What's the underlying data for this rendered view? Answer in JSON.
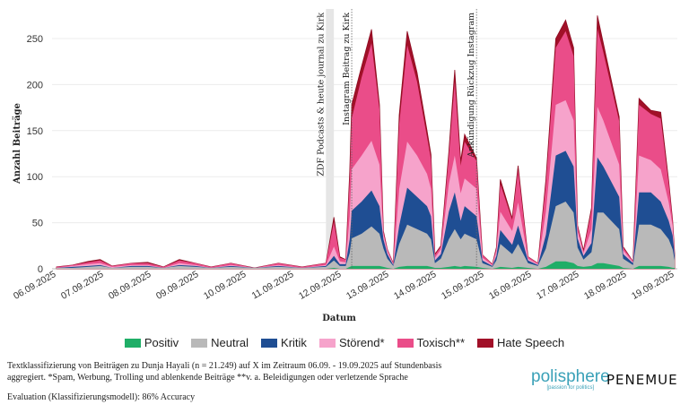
{
  "chart_data": {
    "type": "area",
    "stacked": true,
    "xlabel": "Datum",
    "ylabel": "Anzahl Beiträge",
    "ylim": [
      0,
      275
    ],
    "yticks": [
      0,
      50,
      100,
      150,
      200,
      250
    ],
    "xticks": [
      "06.09.2025",
      "07.09.2025",
      "08.09.2025",
      "09.09.2025",
      "10.09.2025",
      "11.09.2025",
      "12.09.2025",
      "13.09.2025",
      "14.09.2025",
      "15.09.2025",
      "16.09.2025",
      "17.09.2025",
      "18.09.2025",
      "19.09.2025"
    ],
    "grid": "horizontal",
    "legend_position": "bottom",
    "series_names": [
      "Positiv",
      "Neutral",
      "Kritik",
      "Störend*",
      "Toxisch**",
      "Hate Speech"
    ],
    "series_colors": [
      "#1fae67",
      "#b9b9b9",
      "#1f4e93",
      "#f6a3cb",
      "#ea4d89",
      "#a11028"
    ],
    "points": [
      {
        "t": "2025-09-06T00:00",
        "v": [
          0,
          1,
          0,
          0,
          1,
          0
        ]
      },
      {
        "t": "2025-09-06T08:00",
        "v": [
          0,
          1,
          1,
          1,
          1,
          0
        ]
      },
      {
        "t": "2025-09-06T16:00",
        "v": [
          0,
          2,
          1,
          2,
          2,
          1
        ]
      },
      {
        "t": "2025-09-06T22:00",
        "v": [
          0,
          3,
          1,
          2,
          3,
          1
        ]
      },
      {
        "t": "2025-09-07T04:00",
        "v": [
          0,
          1,
          0,
          1,
          1,
          0
        ]
      },
      {
        "t": "2025-09-07T14:00",
        "v": [
          0,
          2,
          1,
          1,
          2,
          0
        ]
      },
      {
        "t": "2025-09-07T22:00",
        "v": [
          0,
          2,
          1,
          1,
          2,
          1
        ]
      },
      {
        "t": "2025-09-08T06:00",
        "v": [
          0,
          1,
          0,
          0,
          1,
          0
        ]
      },
      {
        "t": "2025-09-08T14:00",
        "v": [
          0,
          3,
          1,
          2,
          3,
          1
        ]
      },
      {
        "t": "2025-09-08T22:00",
        "v": [
          0,
          2,
          1,
          1,
          2,
          0
        ]
      },
      {
        "t": "2025-09-09T06:00",
        "v": [
          0,
          1,
          0,
          0,
          1,
          0
        ]
      },
      {
        "t": "2025-09-09T16:00",
        "v": [
          0,
          2,
          1,
          1,
          2,
          0
        ]
      },
      {
        "t": "2025-09-10T04:00",
        "v": [
          0,
          1,
          0,
          0,
          0,
          0
        ]
      },
      {
        "t": "2025-09-10T16:00",
        "v": [
          0,
          2,
          1,
          1,
          2,
          0
        ]
      },
      {
        "t": "2025-09-11T04:00",
        "v": [
          0,
          1,
          0,
          0,
          1,
          0
        ]
      },
      {
        "t": "2025-09-11T16:00",
        "v": [
          0,
          2,
          1,
          1,
          2,
          0
        ]
      },
      {
        "t": "2025-09-11T20:00",
        "v": [
          1,
          8,
          5,
          10,
          27,
          5
        ]
      },
      {
        "t": "2025-09-11T23:00",
        "v": [
          0,
          3,
          2,
          3,
          4,
          1
        ]
      },
      {
        "t": "2025-09-12T02:00",
        "v": [
          0,
          3,
          2,
          2,
          3,
          0
        ]
      },
      {
        "t": "2025-09-12T04:00",
        "v": [
          2,
          15,
          15,
          25,
          40,
          8
        ]
      },
      {
        "t": "2025-09-12T05:00",
        "v": [
          3,
          30,
          30,
          45,
          55,
          15
        ]
      },
      {
        "t": "2025-09-12T10:00",
        "v": [
          3,
          35,
          35,
          50,
          85,
          12
        ]
      },
      {
        "t": "2025-09-12T15:00",
        "v": [
          3,
          43,
          39,
          54,
          106,
          15
        ]
      },
      {
        "t": "2025-09-12T19:00",
        "v": [
          3,
          35,
          30,
          45,
          60,
          5
        ]
      },
      {
        "t": "2025-09-12T21:00",
        "v": [
          2,
          20,
          10,
          5,
          3,
          1
        ]
      },
      {
        "t": "2025-09-12T23:00",
        "v": [
          1,
          10,
          5,
          3,
          2,
          0
        ]
      },
      {
        "t": "2025-09-13T02:00",
        "v": [
          0,
          3,
          1,
          1,
          1,
          0
        ]
      },
      {
        "t": "2025-09-13T05:00",
        "v": [
          2,
          25,
          20,
          40,
          70,
          10
        ]
      },
      {
        "t": "2025-09-13T09:00",
        "v": [
          3,
          45,
          40,
          50,
          105,
          15
        ]
      },
      {
        "t": "2025-09-13T14:00",
        "v": [
          3,
          40,
          35,
          45,
          80,
          10
        ]
      },
      {
        "t": "2025-09-13T19:00",
        "v": [
          3,
          35,
          30,
          35,
          40,
          7
        ]
      },
      {
        "t": "2025-09-13T21:00",
        "v": [
          2,
          30,
          25,
          30,
          32,
          5
        ]
      },
      {
        "t": "2025-09-13T23:00",
        "v": [
          1,
          5,
          3,
          3,
          3,
          1
        ]
      },
      {
        "t": "2025-09-14T02:00",
        "v": [
          1,
          10,
          5,
          5,
          3,
          1
        ]
      },
      {
        "t": "2025-09-14T06:00",
        "v": [
          2,
          30,
          30,
          30,
          30,
          5
        ]
      },
      {
        "t": "2025-09-14T09:00",
        "v": [
          3,
          40,
          40,
          40,
          80,
          13
        ]
      },
      {
        "t": "2025-09-14T12:00",
        "v": [
          2,
          30,
          20,
          30,
          30,
          5
        ]
      },
      {
        "t": "2025-09-14T14:00",
        "v": [
          3,
          35,
          30,
          30,
          40,
          8
        ]
      },
      {
        "t": "2025-09-14T20:00",
        "v": [
          2,
          30,
          25,
          30,
          30,
          3
        ]
      },
      {
        "t": "2025-09-14T23:00",
        "v": [
          1,
          5,
          3,
          3,
          3,
          0
        ]
      },
      {
        "t": "2025-09-15T04:00",
        "v": [
          0,
          2,
          1,
          1,
          1,
          0
        ]
      },
      {
        "t": "2025-09-15T06:00",
        "v": [
          1,
          8,
          5,
          5,
          3,
          1
        ]
      },
      {
        "t": "2025-09-15T08:00",
        "v": [
          2,
          25,
          15,
          20,
          30,
          5
        ]
      },
      {
        "t": "2025-09-15T14:00",
        "v": [
          1,
          15,
          10,
          15,
          12,
          2
        ]
      },
      {
        "t": "2025-09-15T17:00",
        "v": [
          2,
          25,
          20,
          25,
          35,
          5
        ]
      },
      {
        "t": "2025-09-15T22:00",
        "v": [
          1,
          5,
          3,
          2,
          2,
          0
        ]
      },
      {
        "t": "2025-09-16T03:00",
        "v": [
          0,
          3,
          1,
          1,
          1,
          0
        ]
      },
      {
        "t": "2025-09-16T07:00",
        "v": [
          2,
          20,
          15,
          25,
          30,
          5
        ]
      },
      {
        "t": "2025-09-16T12:00",
        "v": [
          8,
          60,
          55,
          55,
          62,
          10
        ]
      },
      {
        "t": "2025-09-16T17:00",
        "v": [
          8,
          65,
          55,
          55,
          75,
          12
        ]
      },
      {
        "t": "2025-09-16T21:00",
        "v": [
          6,
          55,
          50,
          50,
          70,
          9
        ]
      },
      {
        "t": "2025-09-16T23:00",
        "v": [
          3,
          20,
          10,
          8,
          5,
          1
        ]
      },
      {
        "t": "2025-09-17T02:00",
        "v": [
          2,
          8,
          4,
          3,
          2,
          1
        ]
      },
      {
        "t": "2025-09-17T06:00",
        "v": [
          3,
          15,
          10,
          15,
          20,
          3
        ]
      },
      {
        "t": "2025-09-17T09:00",
        "v": [
          6,
          55,
          60,
          55,
          85,
          14
        ]
      },
      {
        "t": "2025-09-17T12:00",
        "v": [
          6,
          55,
          50,
          50,
          74,
          10
        ]
      },
      {
        "t": "2025-09-17T20:00",
        "v": [
          3,
          40,
          35,
          35,
          47,
          5
        ]
      },
      {
        "t": "2025-09-17T22:00",
        "v": [
          1,
          10,
          5,
          4,
          3,
          1
        ]
      },
      {
        "t": "2025-09-18T03:00",
        "v": [
          0,
          4,
          2,
          1,
          1,
          0
        ]
      },
      {
        "t": "2025-09-18T06:00",
        "v": [
          3,
          45,
          35,
          40,
          55,
          7
        ]
      },
      {
        "t": "2025-09-18T12:00",
        "v": [
          3,
          45,
          35,
          35,
          50,
          4
        ]
      },
      {
        "t": "2025-09-18T17:00",
        "v": [
          3,
          40,
          30,
          35,
          55,
          7
        ]
      },
      {
        "t": "2025-09-18T21:00",
        "v": [
          2,
          30,
          20,
          20,
          20,
          3
        ]
      },
      {
        "t": "2025-09-18T23:00",
        "v": [
          1,
          20,
          15,
          10,
          5,
          1
        ]
      },
      {
        "t": "2025-09-19T00:00",
        "v": [
          1,
          8,
          5,
          2,
          1,
          0
        ]
      }
    ],
    "annotations": [
      {
        "label": "ZDF Podcasts & heute journal zu Kirk",
        "type": "band",
        "start": "2025-09-11T16:00",
        "end": "2025-09-11T20:00"
      },
      {
        "label": "Instagram Beitrag zu Kirk",
        "type": "line",
        "t": "2025-09-12T05:00"
      },
      {
        "label": "Ankündigung Rückzug Instagram",
        "type": "line",
        "t": "2025-09-14T20:00"
      }
    ]
  },
  "footer": {
    "note_line1": "Textklassifizierung von Beiträgen zu Dunja Hayali (n = 21.249) auf X im Zeitraum 06.09. - 19.09.2025 auf Stundenbasis",
    "note_line2": "aggregiert. *Spam, Werbung, Trolling und ablenkende Beiträge **v. a. Beleidigungen oder verletzende Sprache",
    "evaluation": "Evaluation (Klassifizierungsmodell): 86% Accuracy"
  },
  "logos": {
    "polisphere": "polisphere",
    "polisphere_tagline": "[passion for politics]",
    "penemue": "PENEMUE"
  }
}
